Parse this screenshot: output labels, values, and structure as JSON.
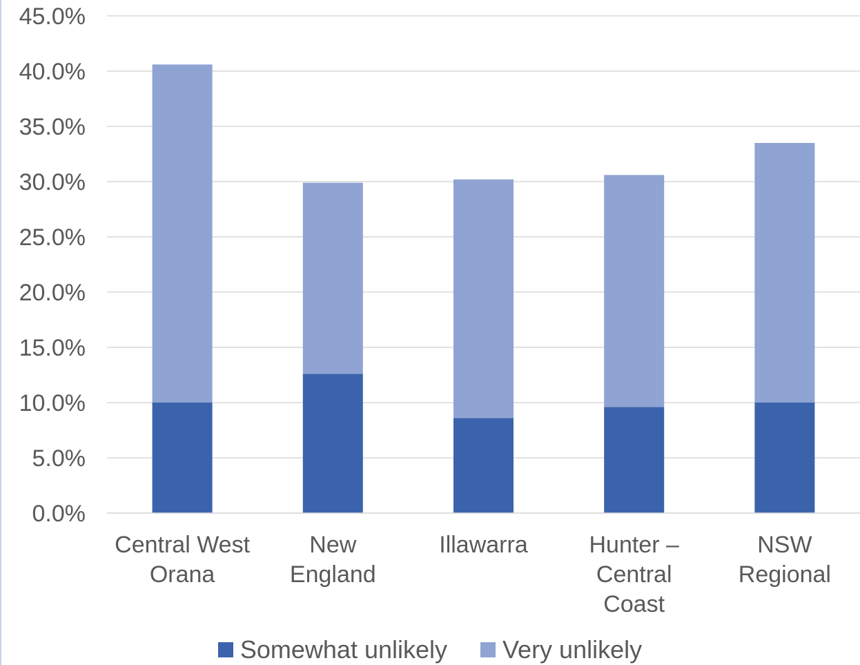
{
  "chart_data": {
    "type": "bar",
    "stacked": true,
    "categories": [
      [
        "Central West",
        "Orana"
      ],
      [
        "New",
        "England"
      ],
      [
        "Illawarra"
      ],
      [
        "Hunter –",
        "Central",
        "Coast"
      ],
      [
        "NSW",
        "Regional"
      ]
    ],
    "series": [
      {
        "name": "Somewhat unlikely",
        "color": "#3a63ab",
        "values": [
          10.0,
          12.6,
          8.6,
          9.6,
          10.0
        ]
      },
      {
        "name": "Very unlikely",
        "color": "#8fa4d3",
        "values": [
          30.6,
          17.3,
          21.6,
          21.0,
          23.5
        ]
      }
    ],
    "y_ticks": [
      "0.0%",
      "5.0%",
      "10.0%",
      "15.0%",
      "20.0%",
      "25.0%",
      "30.0%",
      "35.0%",
      "40.0%",
      "45.0%"
    ],
    "ylim": [
      0,
      45
    ],
    "grid": true,
    "legend_position": "bottom",
    "axis_text_color": "#595959",
    "grid_color": "#d9d9d9"
  }
}
